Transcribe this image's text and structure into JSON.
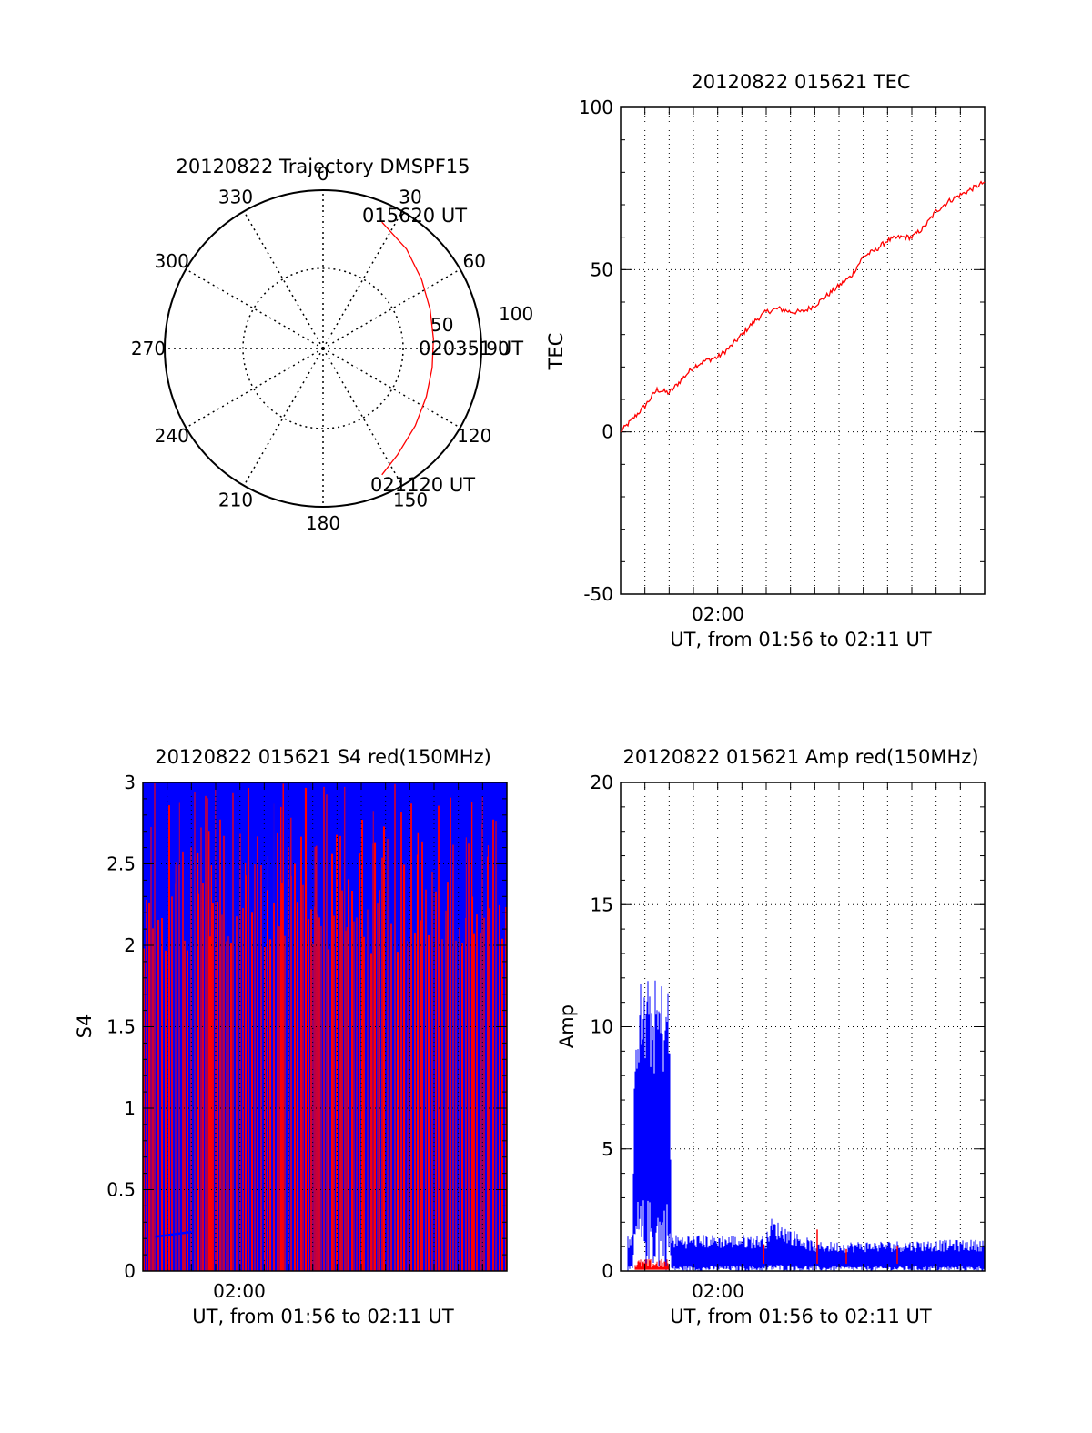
{
  "chart_data": [
    {
      "type": "polar-trajectory",
      "title": "20120822 Trajectory DMSPF15",
      "azimuth_labels": [
        "0",
        "30",
        "60",
        "90",
        "120",
        "150",
        "180",
        "210",
        "240",
        "270",
        "300",
        "330"
      ],
      "radial_labels": [
        "50",
        "100"
      ],
      "point_labels": {
        "start": "015620 UT",
        "mid": "020351 UT",
        "end": "021120 UT"
      },
      "trajectory": [
        [
          25,
          88
        ],
        [
          40,
          82
        ],
        [
          55,
          76
        ],
        [
          70,
          72
        ],
        [
          85,
          70
        ],
        [
          100,
          70
        ],
        [
          115,
          72
        ],
        [
          130,
          76
        ],
        [
          145,
          82
        ],
        [
          155,
          88
        ]
      ],
      "colors": {
        "trajectory": "#ff0000",
        "grid": "#000000"
      }
    },
    {
      "type": "line",
      "title": "20120822 015621 TEC",
      "ylabel": "TEC",
      "xlabel": "UT, from 01:56 to 02:11 UT",
      "x_tick_label": "02:00",
      "y_ticks": [
        "100",
        "50",
        "0",
        "-50"
      ],
      "ylim": [
        -50,
        100
      ],
      "xlim_minutes": [
        0,
        15
      ],
      "series": [
        {
          "color": "#ff0000",
          "x": [
            0,
            0.5,
            1,
            1.5,
            2,
            2.5,
            3,
            3.5,
            4,
            4.5,
            5,
            5.5,
            6,
            6.5,
            7,
            7.5,
            8,
            8.5,
            9,
            9.5,
            10,
            10.5,
            11,
            11.5,
            12,
            12.5,
            13,
            13.5,
            14,
            14.5,
            15
          ],
          "y": [
            0,
            4,
            8,
            13,
            12,
            16,
            20,
            22,
            23,
            26,
            30,
            34,
            37,
            38,
            37,
            37,
            39,
            42,
            45,
            48,
            54,
            56,
            59,
            60,
            60,
            63,
            68,
            71,
            73,
            75,
            77
          ]
        }
      ],
      "colors": {
        "line": "#ff0000"
      }
    },
    {
      "type": "line",
      "title": "20120822 015621 S4 red(150MHz)",
      "ylabel": "S4",
      "xlabel": "UT, from 01:56 to 02:11 UT",
      "x_tick_label": "02:00",
      "y_ticks": [
        "3",
        "2.5",
        "2",
        "1.5",
        "1",
        "0.5",
        "0"
      ],
      "ylim": [
        0,
        3
      ],
      "xlim_minutes": [
        0,
        15
      ],
      "series": [
        {
          "color": "#0000ff",
          "baseline_segment": {
            "x": [
              0.5,
              2
            ],
            "y": [
              0.21,
              0.24
            ]
          }
        },
        {
          "color": "#ff0000"
        }
      ],
      "colors": {
        "red": "#ff0000",
        "blue": "#0000ff"
      }
    },
    {
      "type": "line",
      "title": "20120822 015621 Amp red(150MHz)",
      "ylabel": "Amp",
      "xlabel": "UT, from 01:56 to 02:11 UT",
      "x_tick_label": "02:00",
      "y_ticks": [
        "20",
        "15",
        "10",
        "5",
        "0"
      ],
      "ylim": [
        0,
        20
      ],
      "xlim_minutes": [
        0,
        15
      ],
      "series": [
        {
          "color": "#0000ff",
          "envelope": {
            "x": [
              0,
              0.5,
              0.6,
              2,
              2.1,
              6,
              6.2,
              8,
              15
            ],
            "ymax": [
              1.5,
              1.5,
              12,
              12,
              1.5,
              1.5,
              2.2,
              1.2,
              1.3
            ],
            "ymin": [
              0.2,
              0.2,
              3,
              3,
              0.2,
              0.2,
              0.3,
              0.2,
              0.2
            ]
          }
        },
        {
          "color": "#ff0000",
          "envelope": {
            "x": [
              0.6,
              2
            ],
            "ymax": [
              0.5,
              0.5
            ],
            "ymin": [
              0.1,
              0.1
            ]
          }
        }
      ],
      "colors": {
        "red": "#ff0000",
        "blue": "#0000ff"
      }
    }
  ]
}
